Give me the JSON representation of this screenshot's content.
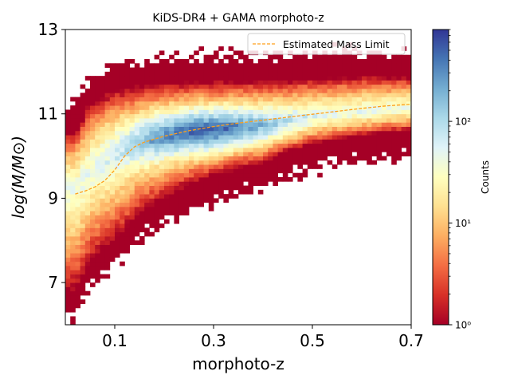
{
  "chart_data": {
    "type": "heatmap",
    "title": "KiDS-DR4 + GAMA morphoto-z",
    "xlabel": "morphoto-z",
    "ylabel": "log(M/M⊙)",
    "xlim": [
      0.0,
      0.7
    ],
    "ylim": [
      6.0,
      13.0
    ],
    "xticks": [
      0.1,
      0.3,
      0.5,
      0.7
    ],
    "xtick_labels": [
      "0.1",
      "0.3",
      "0.5",
      "0.7"
    ],
    "yticks": [
      7,
      9,
      11,
      13
    ],
    "ytick_labels": [
      "7",
      "9",
      "11",
      "13"
    ],
    "legend": {
      "entries": [
        "Estimated Mass Limit"
      ],
      "placement": "upper right"
    },
    "colorbar": {
      "label": "Counts",
      "scale": "log",
      "range": [
        1,
        800
      ],
      "ticks": [
        1,
        10,
        100
      ],
      "tick_labels": [
        "10⁰",
        "10¹",
        "10²"
      ],
      "colormap": "RdYlBu"
    },
    "density_model": {
      "description": "2D histogram of galaxy stellar mass vs morphoto-z",
      "ridge_mass": [
        [
          0.02,
          9.3
        ],
        [
          0.05,
          9.6
        ],
        [
          0.1,
          9.95
        ],
        [
          0.15,
          10.25
        ],
        [
          0.2,
          10.45
        ],
        [
          0.25,
          10.6
        ],
        [
          0.3,
          10.65
        ],
        [
          0.35,
          10.7
        ],
        [
          0.4,
          10.75
        ],
        [
          0.45,
          10.85
        ],
        [
          0.5,
          10.95
        ],
        [
          0.55,
          11.0
        ],
        [
          0.6,
          11.05
        ],
        [
          0.65,
          11.1
        ],
        [
          0.7,
          11.15
        ]
      ],
      "upper_edge": [
        [
          0.02,
          10.6
        ],
        [
          0.05,
          11.3
        ],
        [
          0.1,
          11.6
        ],
        [
          0.15,
          11.7
        ],
        [
          0.2,
          11.75
        ],
        [
          0.3,
          11.8
        ],
        [
          0.4,
          11.8
        ],
        [
          0.5,
          11.85
        ],
        [
          0.6,
          11.9
        ],
        [
          0.7,
          11.9
        ]
      ],
      "lower_edge": [
        [
          0.02,
          6.8
        ],
        [
          0.05,
          7.5
        ],
        [
          0.1,
          8.0
        ],
        [
          0.15,
          8.6
        ],
        [
          0.2,
          9.0
        ],
        [
          0.25,
          9.3
        ],
        [
          0.3,
          9.5
        ],
        [
          0.35,
          9.7
        ],
        [
          0.4,
          9.85
        ],
        [
          0.45,
          10.1
        ],
        [
          0.5,
          10.3
        ],
        [
          0.55,
          10.4
        ],
        [
          0.6,
          10.5
        ],
        [
          0.7,
          10.6
        ]
      ],
      "peak_counts": 800,
      "peak_location": [
        0.28,
        10.6
      ]
    },
    "series": [
      {
        "name": "Estimated Mass Limit",
        "style": "dashed",
        "color": "#ff9f1a",
        "x": [
          0.02,
          0.04,
          0.06,
          0.08,
          0.1,
          0.12,
          0.14,
          0.16,
          0.2,
          0.25,
          0.3,
          0.35,
          0.4,
          0.45,
          0.5,
          0.55,
          0.6,
          0.65,
          0.7
        ],
        "y": [
          9.1,
          9.17,
          9.27,
          9.42,
          9.67,
          10.0,
          10.22,
          10.33,
          10.47,
          10.6,
          10.7,
          10.78,
          10.85,
          10.92,
          10.99,
          11.06,
          11.13,
          11.19,
          11.23
        ]
      }
    ]
  }
}
